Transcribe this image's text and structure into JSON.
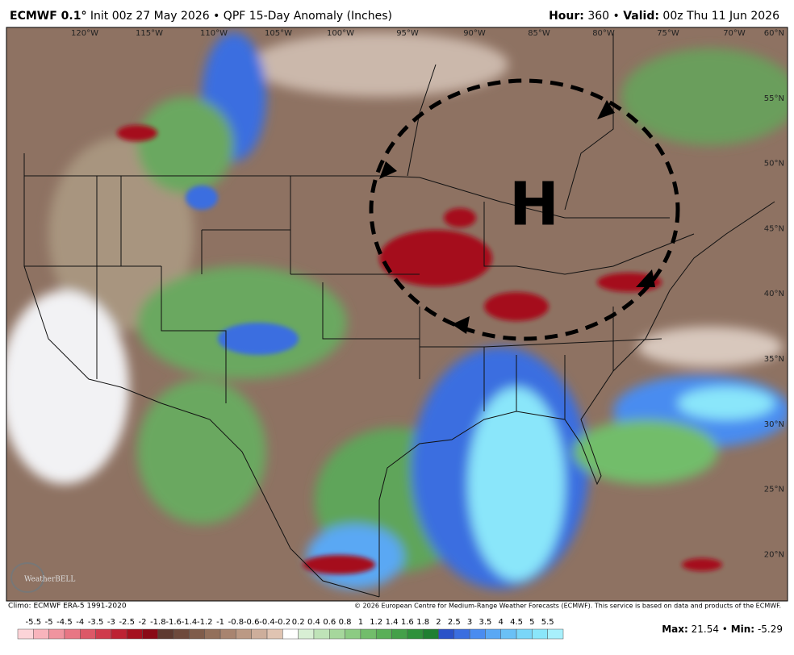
{
  "header": {
    "model": "ECMWF 0.1°",
    "run": "Init 00z 27 May 2026 • QPF 15-Day Anomaly (Inches)",
    "hour_label": "Hour:",
    "hour": "360 •",
    "valid_label": "Valid:",
    "valid": "00z Thu 11 Jun 2026"
  },
  "map": {
    "lon_labels": [
      "120°W",
      "115°W",
      "110°W",
      "105°W",
      "100°W",
      "95°W",
      "90°W",
      "85°W",
      "80°W",
      "75°W",
      "70°W"
    ],
    "lat_labels": [
      "60°N",
      "55°N",
      "50°N",
      "45°N",
      "40°N",
      "35°N",
      "30°N",
      "25°N",
      "20°N"
    ],
    "annotation": "H",
    "logo": "WeatherBELL"
  },
  "footer": {
    "climo": "Climo: ECMWF ERA-5 1991-2020",
    "copyright": "© 2026 European Centre for Medium-Range Weather Forecasts (ECMWF). This service is based on data and products of the ECMWF."
  },
  "colorbar": {
    "labels": [
      -5.5,
      -5,
      -4.5,
      -4,
      -3.5,
      -3,
      -2.5,
      -2,
      -1.8,
      -1.6,
      -1.4,
      -1.2,
      -1,
      -0.8,
      -0.6,
      -0.4,
      -0.2,
      0.2,
      0.4,
      0.6,
      0.8,
      1,
      1.2,
      1.4,
      1.6,
      1.8,
      2,
      2.5,
      3,
      3.5,
      4,
      4.5,
      5,
      5.5
    ],
    "colors": [
      "#fcd4d8",
      "#f8b4bc",
      "#f0949f",
      "#e87684",
      "#dc5867",
      "#cf3b4c",
      "#bd2233",
      "#a5111f",
      "#8a0a16",
      "#5e3a30",
      "#6e4a3c",
      "#7f5c4a",
      "#93705b",
      "#a88470",
      "#bb9984",
      "#cdae9b",
      "#e0c4b2",
      "#ffffff",
      "#d8efd4",
      "#bfe3b8",
      "#a6d79c",
      "#8ccb83",
      "#72bd6b",
      "#5aaf58",
      "#44a049",
      "#2f913b",
      "#1f7f31",
      "#2a52c8",
      "#3a6ee0",
      "#4a8cf0",
      "#5aa8f4",
      "#6ac0f6",
      "#7ad6f8",
      "#8ae6fa",
      "#a8f0fc"
    ]
  },
  "stats": {
    "max_label": "Max:",
    "max": "21.54 •",
    "min_label": "Min:",
    "min": "-5.29"
  }
}
